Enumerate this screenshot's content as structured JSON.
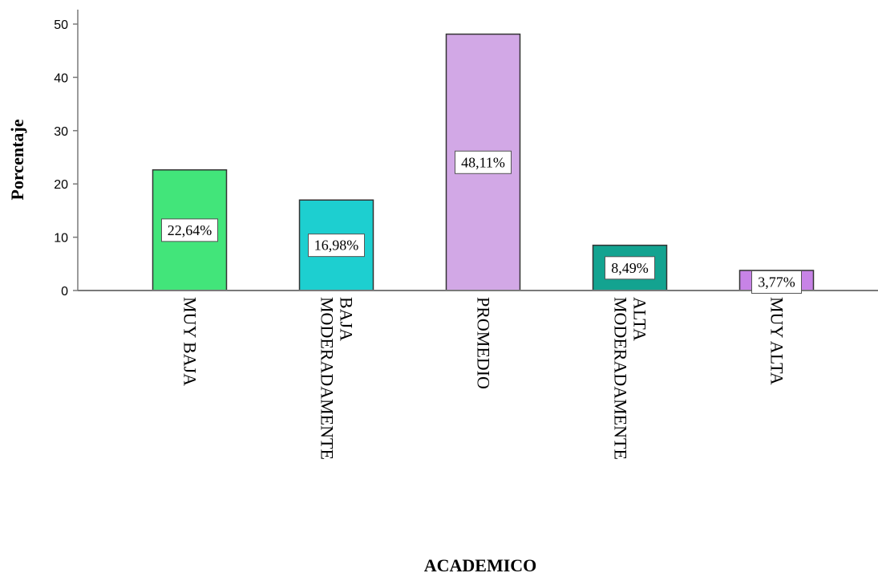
{
  "chart_data": {
    "type": "bar",
    "categories": [
      "MUY BAJA",
      "MODERADAMENTE BAJA",
      "PROMEDIO",
      "MODERADAMENTE ALTA",
      "MUY ALTA"
    ],
    "category_lines": [
      [
        "MUY BAJA"
      ],
      [
        "MODERADAMENTE",
        "BAJA"
      ],
      [
        "PROMEDIO"
      ],
      [
        "MODERADAMENTE",
        "ALTA"
      ],
      [
        "MUY ALTA"
      ]
    ],
    "values": [
      22.64,
      16.98,
      48.11,
      8.49,
      3.77
    ],
    "data_labels": [
      "22,64%",
      "16,98%",
      "48,11%",
      "8,49%",
      "3,77%"
    ],
    "colors": [
      "#42e57a",
      "#1dcfd0",
      "#d2a8e6",
      "#13a390",
      "#c783e6"
    ],
    "yticks": [
      0,
      10,
      20,
      30,
      40,
      50
    ],
    "ylim": [
      0,
      52
    ],
    "xlabel": "ACADEMICO",
    "ylabel": "Porcentaje",
    "grid": false
  }
}
